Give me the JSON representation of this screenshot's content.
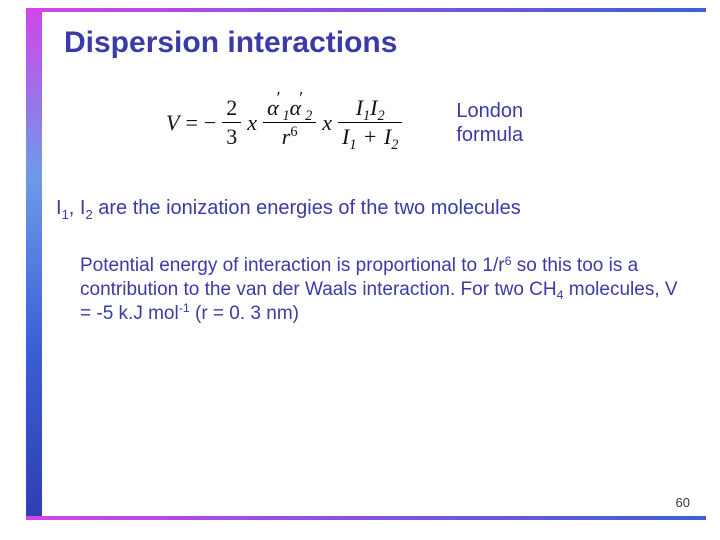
{
  "colors": {
    "text_primary": "#3a3aa8",
    "rail_gradient_start": "#d146e8",
    "rail_gradient_end": "#3b5fd6",
    "background": "#ffffff"
  },
  "title": "Dispersion interactions",
  "formula": {
    "lhs": "V",
    "eq": "=",
    "neg": "−",
    "frac1": {
      "num": "2",
      "den": "3"
    },
    "times": "x",
    "frac2": {
      "num_a1": "α",
      "num_a1_sub": "1",
      "num_a1_prime": "′",
      "num_a2": "α",
      "num_a2_sub": "2",
      "num_a2_prime": "′",
      "den_r": "r",
      "den_exp": "6"
    },
    "frac3": {
      "num_I1": "I",
      "num_I1_sub": "1",
      "num_I2": "I",
      "num_I2_sub": "2",
      "den_I1": "I",
      "den_I1_sub": "1",
      "den_plus": "+",
      "den_I2": "I",
      "den_I2_sub": "2"
    }
  },
  "london_label_l1": "London",
  "london_label_l2": "formula",
  "ionization": {
    "I1": "I",
    "I1_sub": "1",
    "sep": ", ",
    "I2": "I",
    "I2_sub": "2",
    "rest": " are the ionization energies of the two molecules"
  },
  "body": {
    "pre": "Potential energy of interaction is proportional to 1/r",
    "r_exp": "6",
    "mid": " so this too is a contribution to the van der Waals interaction. For two CH",
    "ch_sub": "4",
    "mid2": " molecules, V = -5 k.J mol",
    "mol_exp": "-1",
    "tail": " (r = 0. 3 nm)"
  },
  "slide_number": "60"
}
